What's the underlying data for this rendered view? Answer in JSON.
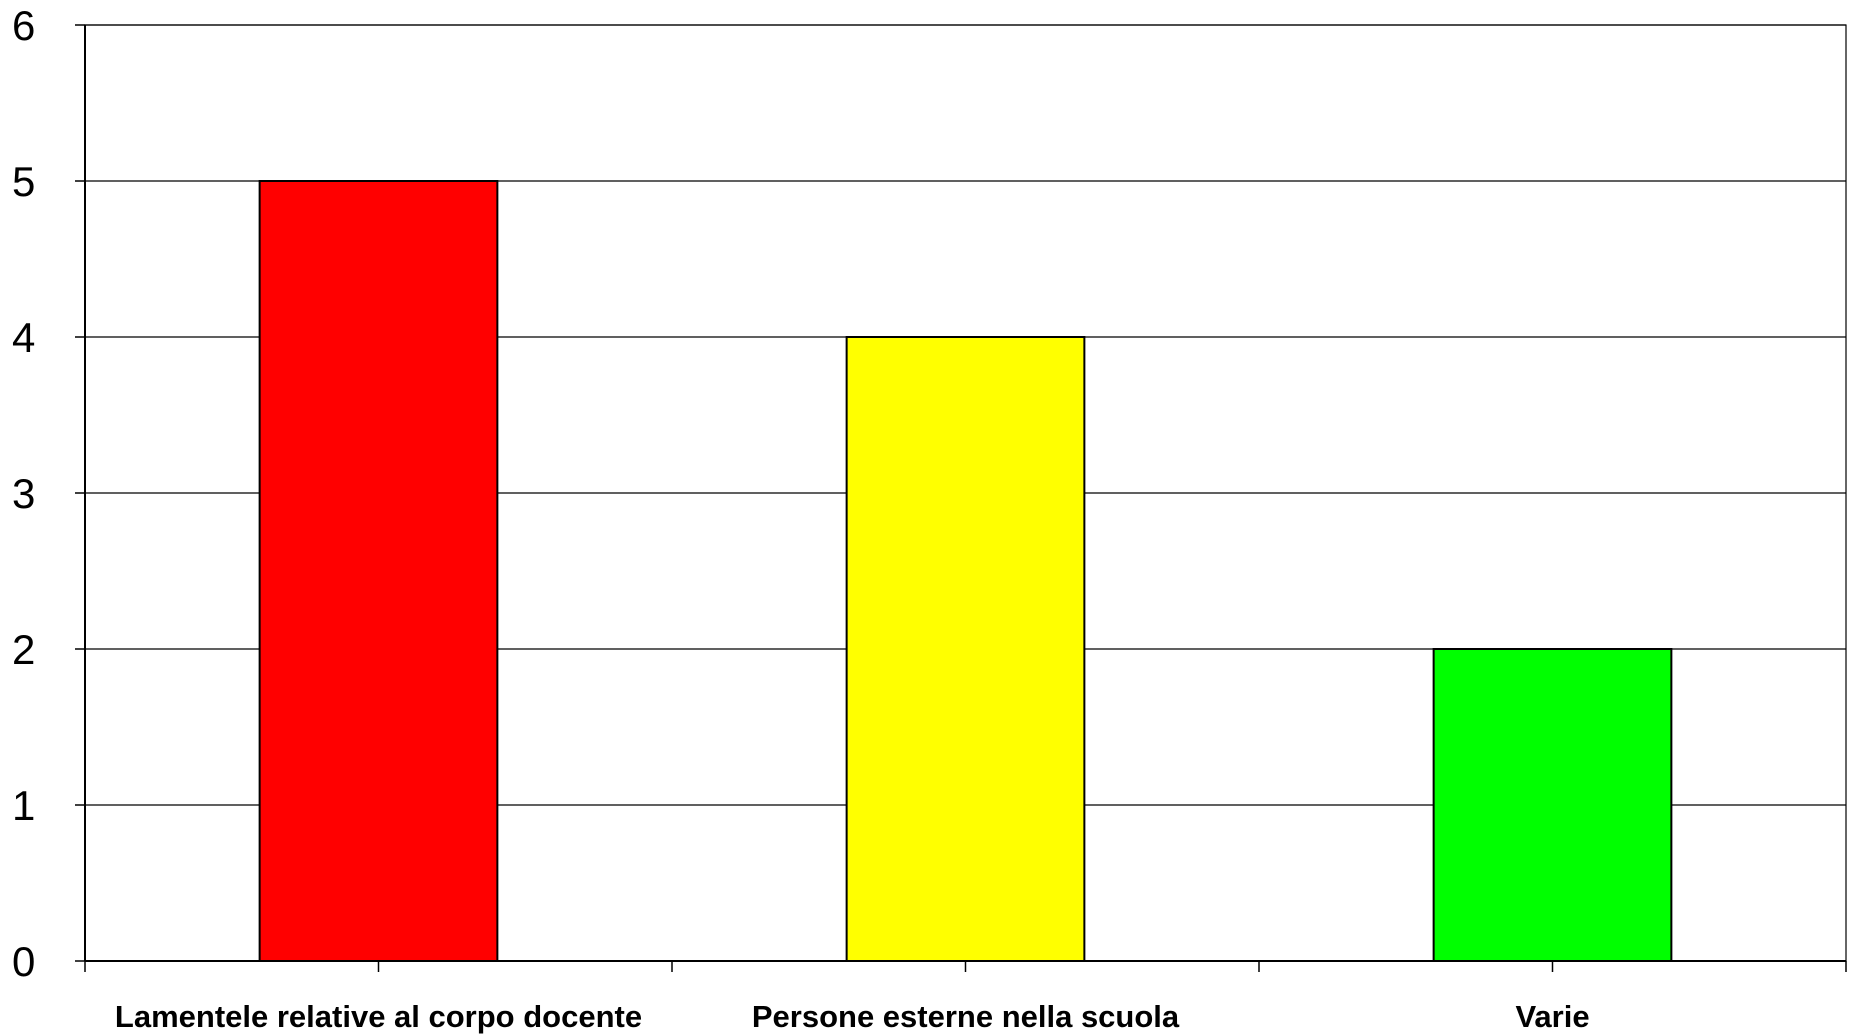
{
  "chart_data": {
    "type": "bar",
    "title": "",
    "xlabel": "",
    "ylabel": "",
    "categories": [
      "Lamentele relative al corpo docente",
      "Persone esterne nella scuola",
      "Varie"
    ],
    "values": [
      5,
      4,
      2
    ],
    "bar_colors": [
      "#ff0000",
      "#ffff00",
      "#00ff00"
    ],
    "ylim": [
      0,
      6
    ],
    "yticks": [
      "0",
      "1",
      "2",
      "3",
      "4",
      "5",
      "6"
    ],
    "grid": true,
    "legend": "none"
  }
}
